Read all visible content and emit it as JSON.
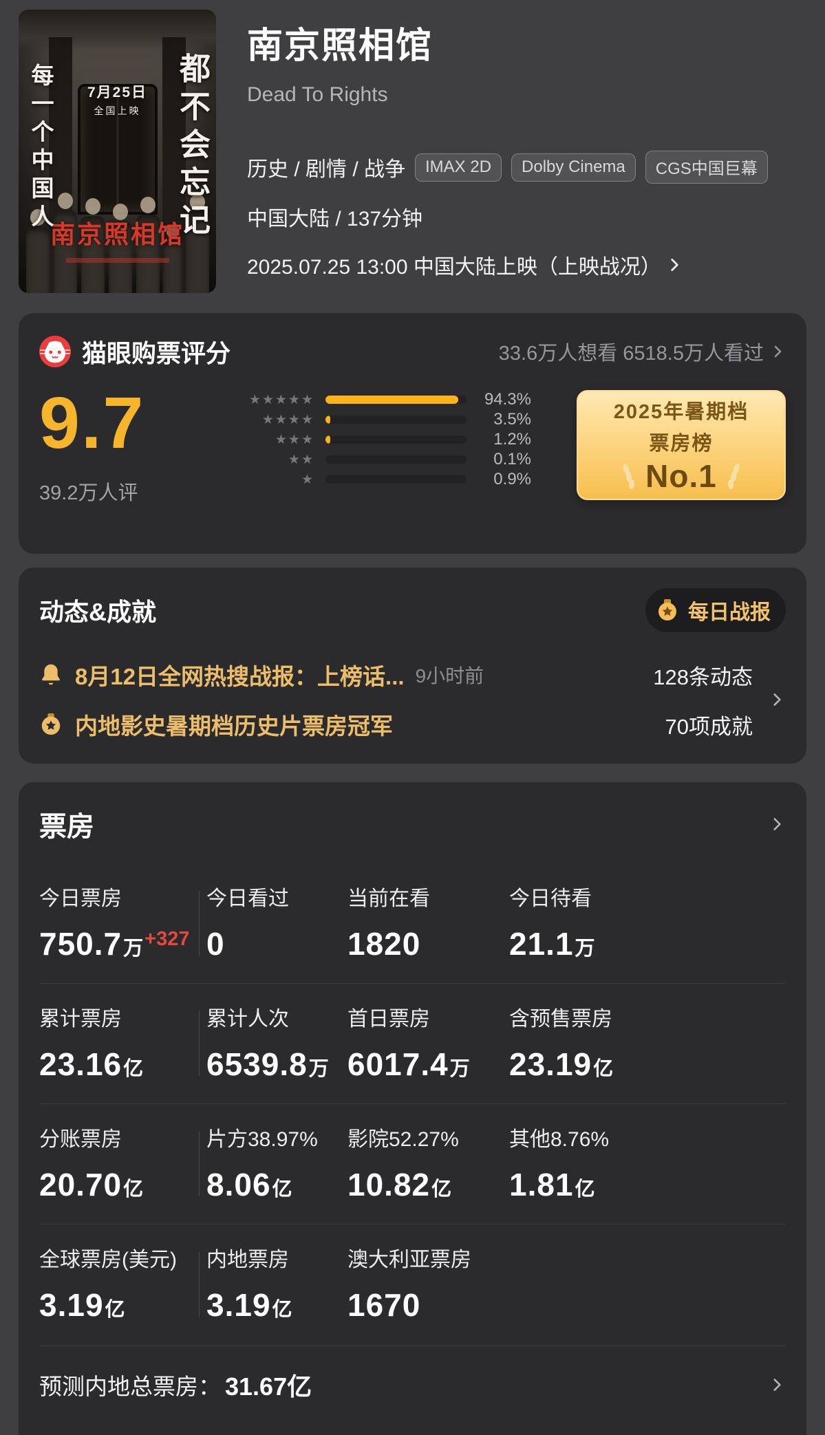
{
  "colors": {
    "page_bg": "#3F3F41",
    "card_bg": "#2B2B2D",
    "accent_gold": "#F7B52C",
    "bar_gold": "#FFB416",
    "gold_text": "#EDBE6A",
    "maoyan_red": "#EE3B3B",
    "delta_red": "#E5493D"
  },
  "header": {
    "title": "南京照相馆",
    "english_title": "Dead To Rights",
    "genres": "历史 / 剧情 / 战争",
    "badges": [
      "IMAX 2D",
      "Dolby Cinema",
      "CGS中国巨幕"
    ],
    "region_duration": "中国大陆 / 137分钟",
    "release_info": "2025.07.25 13:00 中国大陆上映（上映战况）",
    "poster": {
      "left_text": "每一个中国人",
      "right_text": "都不会忘记",
      "date_line1": "7月25日",
      "date_line2": "全国上映",
      "cn_title": "南京照相馆"
    }
  },
  "rating_card": {
    "title": "猫眼购票评分",
    "stats": "33.6万人想看 6518.5万人看过",
    "score": "9.7",
    "raters": "39.2万人评",
    "distribution": [
      {
        "stars": 5,
        "value": 94.3,
        "pct": "94.3%"
      },
      {
        "stars": 4,
        "value": 3.5,
        "pct": "3.5%"
      },
      {
        "stars": 3,
        "value": 1.2,
        "pct": "1.2%"
      },
      {
        "stars": 2,
        "value": 0.1,
        "pct": "0.1%"
      },
      {
        "stars": 1,
        "value": 0.9,
        "pct": "0.9%"
      }
    ],
    "award": {
      "line1": "2025年暑期档",
      "line2": "票房榜",
      "rank": "No.1"
    }
  },
  "activity_card": {
    "title": "动态&成就",
    "daily_report": "每日战报",
    "rows": [
      {
        "text": "8月12日全网热搜战报：上榜话...",
        "time": "9小时前",
        "right": "128条动态"
      },
      {
        "text": "内地影史暑期档历史片票房冠军",
        "time": "",
        "right": "70项成就"
      }
    ]
  },
  "boxoffice_card": {
    "title": "票房",
    "rows": [
      [
        {
          "label": "今日票房",
          "value": "750.7",
          "unit": "万",
          "delta": "+327"
        },
        {
          "label": "今日看过",
          "value": "0",
          "unit": ""
        },
        {
          "label": "当前在看",
          "value": "1820",
          "unit": ""
        },
        {
          "label": "今日待看",
          "value": "21.1",
          "unit": "万"
        }
      ],
      [
        {
          "label": "累计票房",
          "value": "23.16",
          "unit": "亿"
        },
        {
          "label": "累计人次",
          "value": "6539.8",
          "unit": "万"
        },
        {
          "label": "首日票房",
          "value": "6017.4",
          "unit": "万"
        },
        {
          "label": "含预售票房",
          "value": "23.19",
          "unit": "亿"
        }
      ],
      [
        {
          "label": "分账票房",
          "value": "20.70",
          "unit": "亿"
        },
        {
          "label": "片方38.97%",
          "value": "8.06",
          "unit": "亿"
        },
        {
          "label": "影院52.27%",
          "value": "10.82",
          "unit": "亿"
        },
        {
          "label": "其他8.76%",
          "value": "1.81",
          "unit": "亿"
        }
      ],
      [
        {
          "label": "全球票房(美元)",
          "value": "3.19",
          "unit": "亿"
        },
        {
          "label": "内地票房",
          "value": "3.19",
          "unit": "亿"
        },
        {
          "label": "澳大利亚票房",
          "value": "1670",
          "unit": ""
        }
      ]
    ],
    "footer_label": "预测内地总票房：",
    "footer_value": "31.67亿"
  }
}
